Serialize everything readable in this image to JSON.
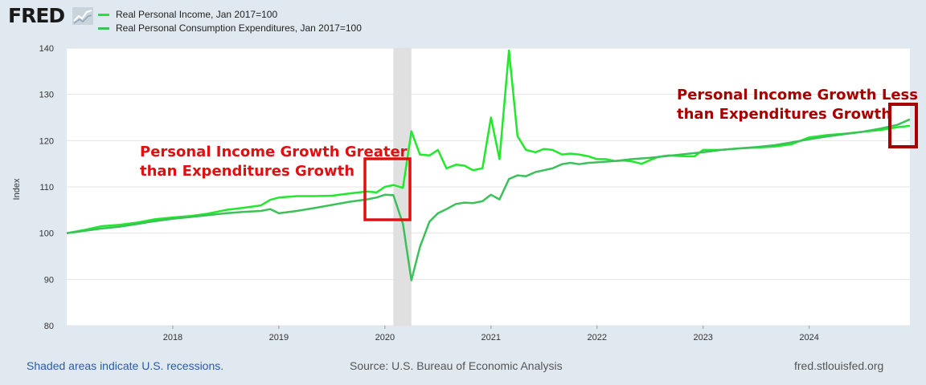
{
  "header": {
    "logo_text": "FRED",
    "logo_icon": "chart-trend-icon"
  },
  "chart_data": {
    "type": "line",
    "ylabel": "Index",
    "ylim": [
      80,
      140
    ],
    "y_ticks": [
      80,
      90,
      100,
      110,
      120,
      130,
      140
    ],
    "xlim": [
      2017.0,
      2024.95
    ],
    "x_ticks": [
      {
        "label": "2018",
        "x": 2018
      },
      {
        "label": "2019",
        "x": 2019
      },
      {
        "label": "2020",
        "x": 2020
      },
      {
        "label": "2021",
        "x": 2021
      },
      {
        "label": "2022",
        "x": 2022
      },
      {
        "label": "2023",
        "x": 2023
      },
      {
        "label": "2024",
        "x": 2024
      }
    ],
    "recession": {
      "start": 2020.08,
      "end": 2020.25
    },
    "series": [
      {
        "name": "Real Personal Income, Jan 2017=100",
        "color": "#21e82c",
        "points": [
          [
            2017.0,
            100
          ],
          [
            2017.17,
            100.7
          ],
          [
            2017.33,
            101.5
          ],
          [
            2017.5,
            101.8
          ],
          [
            2017.67,
            102.3
          ],
          [
            2017.83,
            103
          ],
          [
            2018.0,
            103.4
          ],
          [
            2018.17,
            103.7
          ],
          [
            2018.33,
            104.2
          ],
          [
            2018.5,
            105
          ],
          [
            2018.67,
            105.5
          ],
          [
            2018.83,
            106
          ],
          [
            2018.92,
            107.2
          ],
          [
            2019.0,
            107.7
          ],
          [
            2019.17,
            108
          ],
          [
            2019.33,
            108
          ],
          [
            2019.5,
            108.1
          ],
          [
            2019.67,
            108.6
          ],
          [
            2019.83,
            109
          ],
          [
            2019.92,
            108.8
          ],
          [
            2020.0,
            110
          ],
          [
            2020.08,
            110.4
          ],
          [
            2020.17,
            109.8
          ],
          [
            2020.25,
            122
          ],
          [
            2020.33,
            117
          ],
          [
            2020.42,
            116.8
          ],
          [
            2020.5,
            118
          ],
          [
            2020.58,
            114
          ],
          [
            2020.67,
            114.8
          ],
          [
            2020.75,
            114.6
          ],
          [
            2020.83,
            113.6
          ],
          [
            2020.92,
            114
          ],
          [
            2021.0,
            125
          ],
          [
            2021.08,
            116
          ],
          [
            2021.17,
            139.5
          ],
          [
            2021.25,
            121
          ],
          [
            2021.33,
            118
          ],
          [
            2021.42,
            117.5
          ],
          [
            2021.5,
            118.2
          ],
          [
            2021.58,
            118
          ],
          [
            2021.67,
            117
          ],
          [
            2021.75,
            117.2
          ],
          [
            2021.83,
            117
          ],
          [
            2021.92,
            116.6
          ],
          [
            2022.0,
            116
          ],
          [
            2022.08,
            116
          ],
          [
            2022.17,
            115.6
          ],
          [
            2022.25,
            115.7
          ],
          [
            2022.33,
            115.5
          ],
          [
            2022.42,
            115
          ],
          [
            2022.5,
            115.8
          ],
          [
            2022.58,
            116.5
          ],
          [
            2022.67,
            116.8
          ],
          [
            2022.75,
            116.7
          ],
          [
            2022.83,
            116.6
          ],
          [
            2022.92,
            116.6
          ],
          [
            2023.0,
            118
          ],
          [
            2023.17,
            118
          ],
          [
            2023.33,
            118.3
          ],
          [
            2023.5,
            118.5
          ],
          [
            2023.67,
            118.7
          ],
          [
            2023.83,
            119.2
          ],
          [
            2024.0,
            120.7
          ],
          [
            2024.17,
            121.2
          ],
          [
            2024.33,
            121.5
          ],
          [
            2024.5,
            121.9
          ],
          [
            2024.67,
            122.3
          ],
          [
            2024.83,
            122.9
          ],
          [
            2024.95,
            123.2
          ]
        ]
      },
      {
        "name": "Real Personal Consumption Expenditures, Jan 2017=100",
        "color": "#3cc05a",
        "points": [
          [
            2017.0,
            100
          ],
          [
            2017.17,
            100.5
          ],
          [
            2017.33,
            101
          ],
          [
            2017.5,
            101.4
          ],
          [
            2017.67,
            102
          ],
          [
            2017.83,
            102.6
          ],
          [
            2018.0,
            103.1
          ],
          [
            2018.17,
            103.5
          ],
          [
            2018.33,
            103.9
          ],
          [
            2018.5,
            104.3
          ],
          [
            2018.67,
            104.6
          ],
          [
            2018.83,
            104.8
          ],
          [
            2018.92,
            105.2
          ],
          [
            2019.0,
            104.3
          ],
          [
            2019.17,
            104.8
          ],
          [
            2019.33,
            105.4
          ],
          [
            2019.5,
            106.1
          ],
          [
            2019.67,
            106.8
          ],
          [
            2019.83,
            107.3
          ],
          [
            2019.92,
            107.7
          ],
          [
            2020.0,
            108.3
          ],
          [
            2020.08,
            108.2
          ],
          [
            2020.17,
            102
          ],
          [
            2020.25,
            89.8
          ],
          [
            2020.33,
            97
          ],
          [
            2020.42,
            102.5
          ],
          [
            2020.5,
            104.3
          ],
          [
            2020.58,
            105.2
          ],
          [
            2020.67,
            106.3
          ],
          [
            2020.75,
            106.6
          ],
          [
            2020.83,
            106.5
          ],
          [
            2020.92,
            106.9
          ],
          [
            2021.0,
            108.3
          ],
          [
            2021.08,
            107.3
          ],
          [
            2021.17,
            111.7
          ],
          [
            2021.25,
            112.5
          ],
          [
            2021.33,
            112.3
          ],
          [
            2021.42,
            113.2
          ],
          [
            2021.5,
            113.6
          ],
          [
            2021.58,
            114
          ],
          [
            2021.67,
            114.9
          ],
          [
            2021.75,
            115.2
          ],
          [
            2021.83,
            114.9
          ],
          [
            2021.92,
            115.2
          ],
          [
            2022.0,
            115.3
          ],
          [
            2022.17,
            115.6
          ],
          [
            2022.33,
            116
          ],
          [
            2022.5,
            116.3
          ],
          [
            2022.67,
            116.7
          ],
          [
            2022.83,
            117.1
          ],
          [
            2023.0,
            117.5
          ],
          [
            2023.17,
            118
          ],
          [
            2023.33,
            118.3
          ],
          [
            2023.5,
            118.6
          ],
          [
            2023.67,
            119
          ],
          [
            2023.83,
            119.6
          ],
          [
            2024.0,
            120.3
          ],
          [
            2024.17,
            120.9
          ],
          [
            2024.33,
            121.4
          ],
          [
            2024.5,
            121.9
          ],
          [
            2024.67,
            122.6
          ],
          [
            2024.83,
            123.4
          ],
          [
            2024.95,
            124.6
          ]
        ]
      }
    ],
    "annotations": [
      {
        "lines": [
          "Personal Income Growth Greater",
          "than Expenditures Growth"
        ],
        "color": "#e01010"
      },
      {
        "lines": [
          "Personal Income Growth Less",
          "than Expenditures Growth"
        ],
        "color": "#a80000"
      }
    ]
  },
  "footer": {
    "left": "Shaded areas indicate U.S. recessions.",
    "middle": "Source: U.S. Bureau of Economic Analysis",
    "right": "fred.stlouisfed.org"
  }
}
